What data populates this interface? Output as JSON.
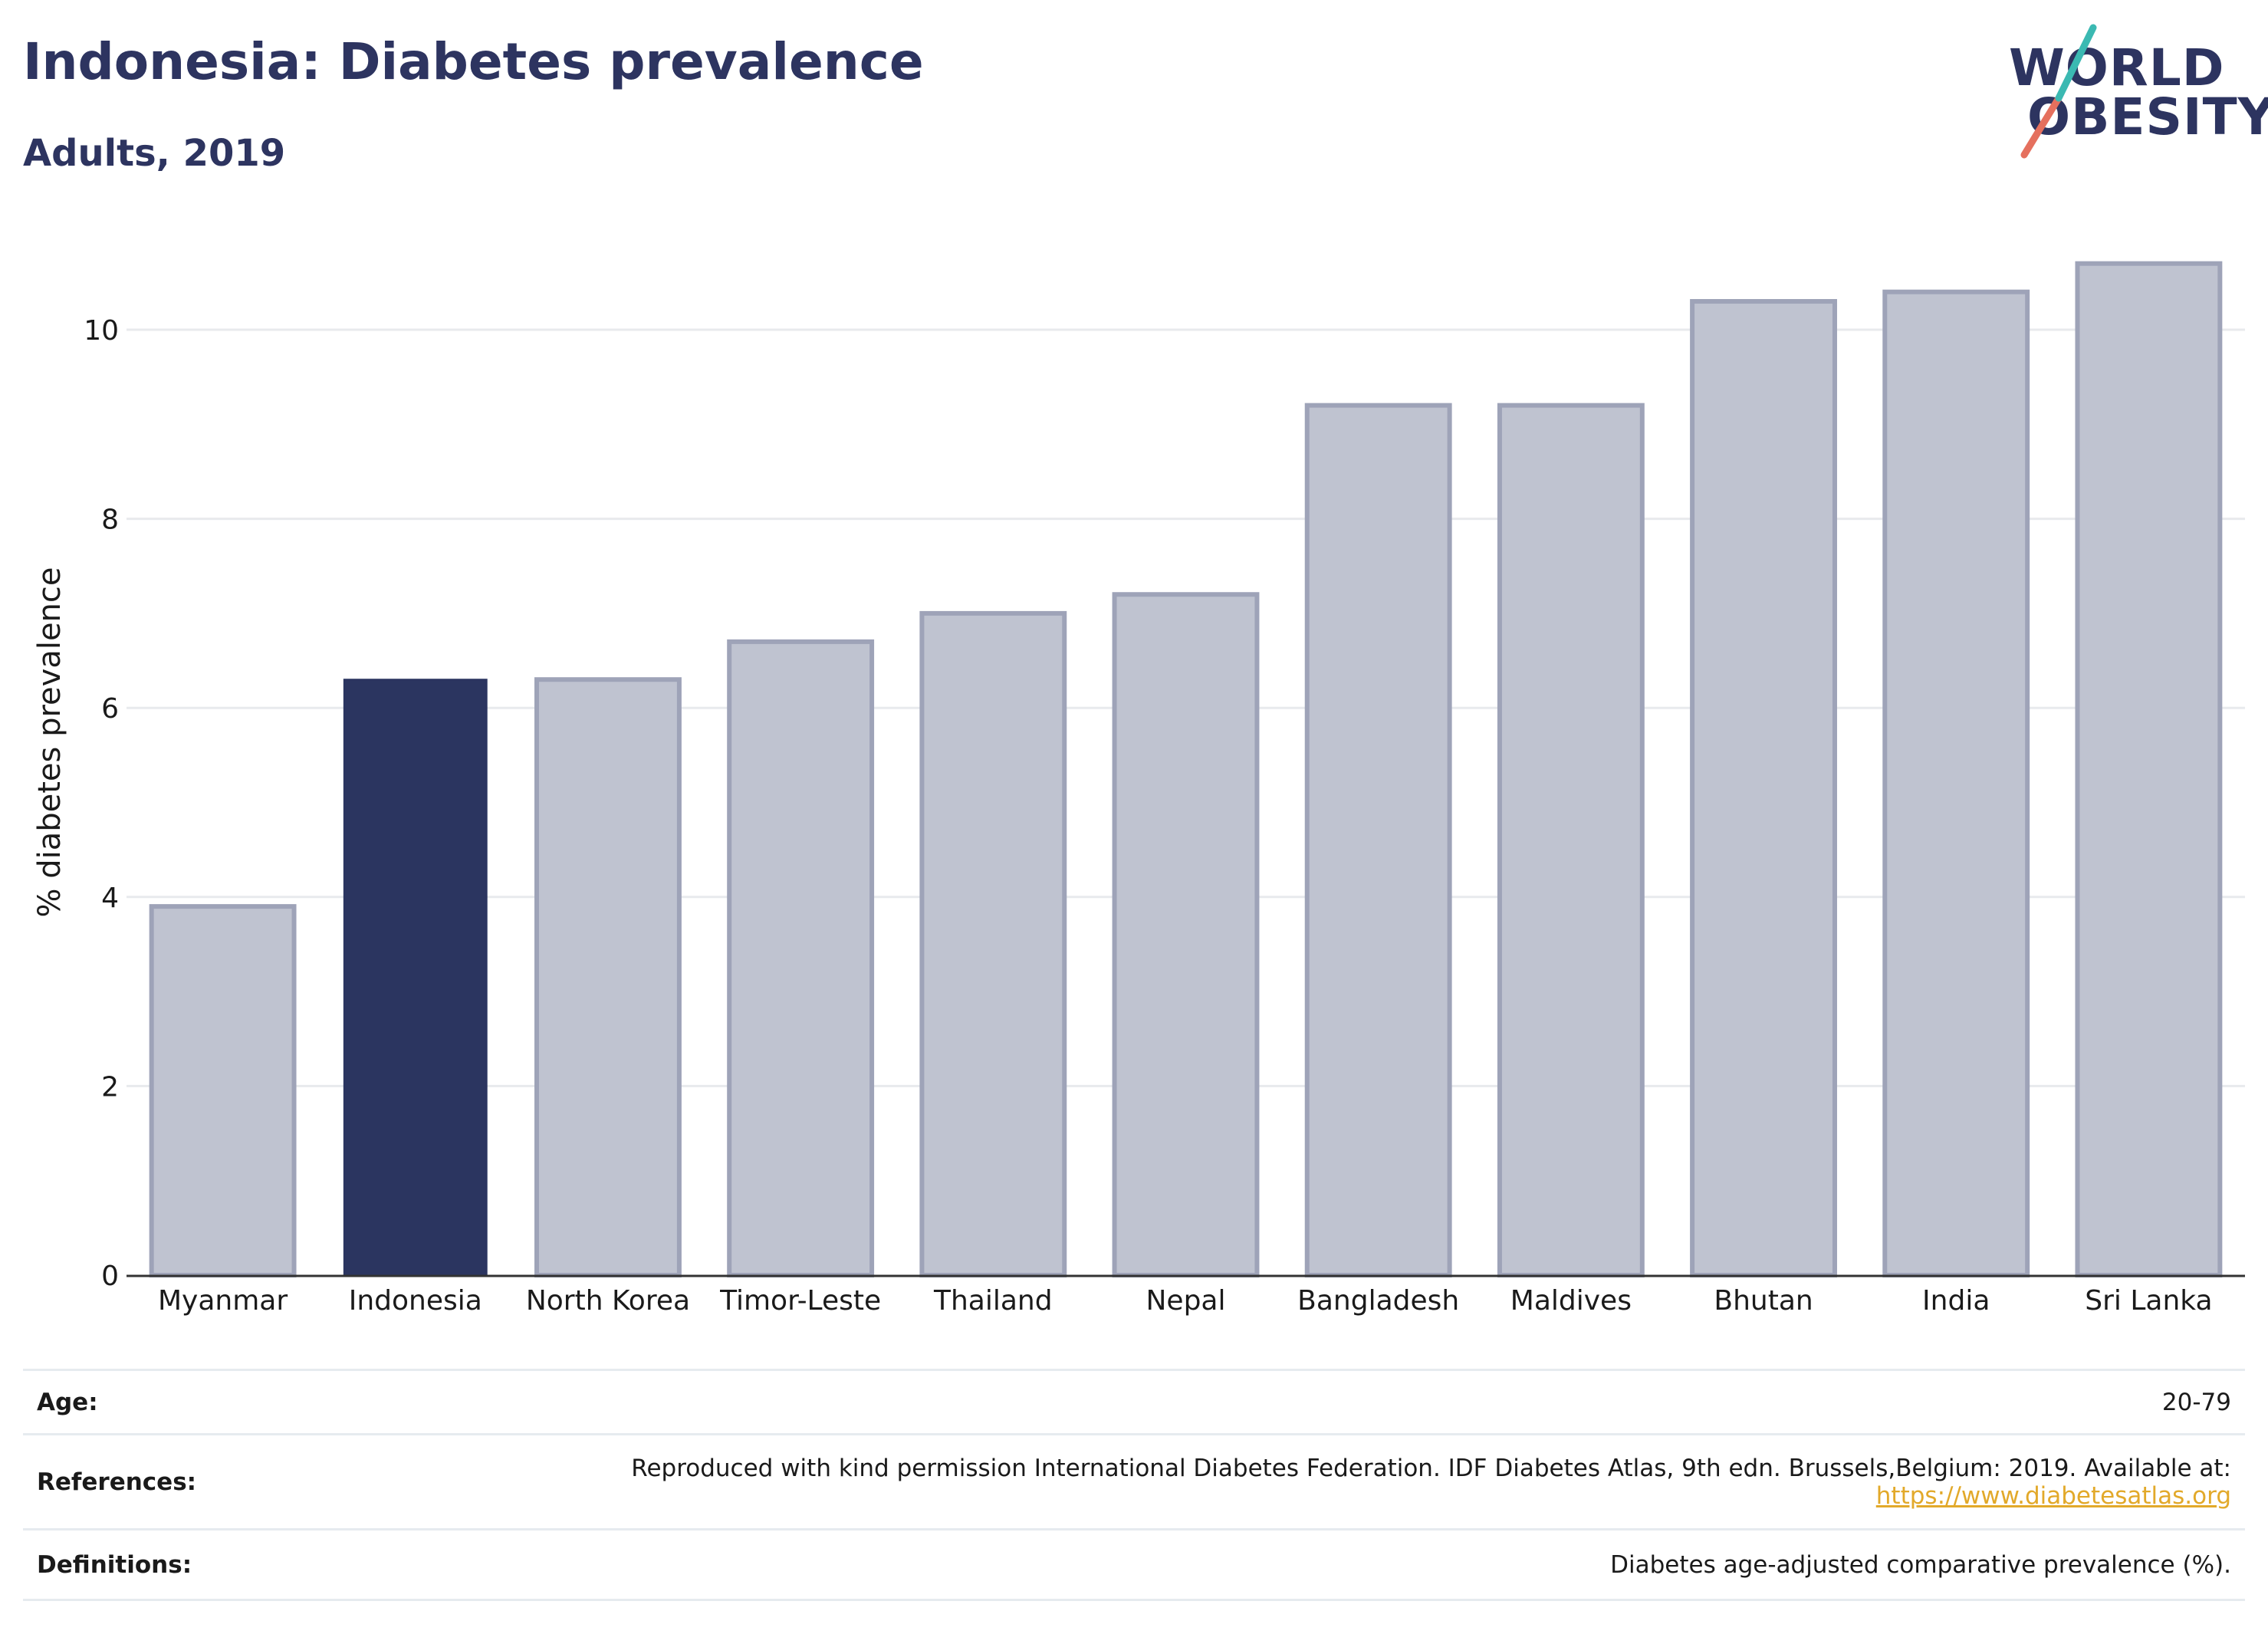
{
  "header": {
    "title": "Indonesia: Diabetes prevalence",
    "subtitle": "Adults, 2019"
  },
  "logo": {
    "line1": "WORLD",
    "line2": "OBESITY"
  },
  "chart_data": {
    "type": "bar",
    "title": "Indonesia: Diabetes prevalence",
    "subtitle": "Adults, 2019",
    "xlabel": "",
    "ylabel": "% diabetes prevalence",
    "ylim": [
      0,
      11
    ],
    "yticks": [
      0,
      2,
      4,
      6,
      8,
      10
    ],
    "grid": true,
    "legend": "none",
    "categories": [
      "Myanmar",
      "Indonesia",
      "North Korea",
      "Timor-Leste",
      "Thailand",
      "Nepal",
      "Bangladesh",
      "Maldives",
      "Bhutan",
      "India",
      "Sri Lanka"
    ],
    "values": [
      3.9,
      6.3,
      6.3,
      6.7,
      7.0,
      7.2,
      9.2,
      9.2,
      10.3,
      10.4,
      10.7
    ],
    "highlight": "Indonesia",
    "colors": {
      "highlight": "#2b3560",
      "default_fill": "#bfc3d0",
      "default_stroke": "#9ea3b8"
    }
  },
  "info": [
    {
      "key": "Age:",
      "value": "20-79"
    },
    {
      "key": "References:",
      "value": "Reproduced with kind permission International Diabetes Federation. IDF Diabetes Atlas, 9th edn. Brussels,Belgium: 2019. Available at:",
      "link": "https://www.diabetesatlas.org"
    },
    {
      "key": "Definitions:",
      "value": "Diabetes age-adjusted comparative prevalence (%)."
    }
  ]
}
